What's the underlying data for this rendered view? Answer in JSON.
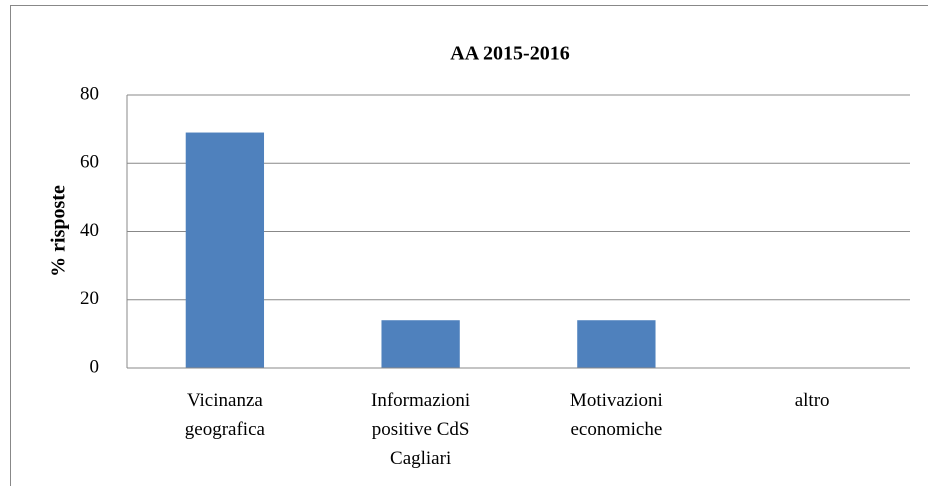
{
  "chart_data": {
    "type": "bar",
    "title": "AA 2015-2016",
    "y_label": "% risposte",
    "categories": [
      "Vicinanza geografica",
      "Informazioni positive CdS Cagliari",
      "Motivazioni economiche",
      "altro"
    ],
    "values": [
      69,
      14,
      14,
      0
    ],
    "color": "#4f81bd",
    "ylim": [
      0,
      80
    ],
    "yticks": [
      0,
      20,
      40,
      60,
      80
    ],
    "grid": true
  }
}
